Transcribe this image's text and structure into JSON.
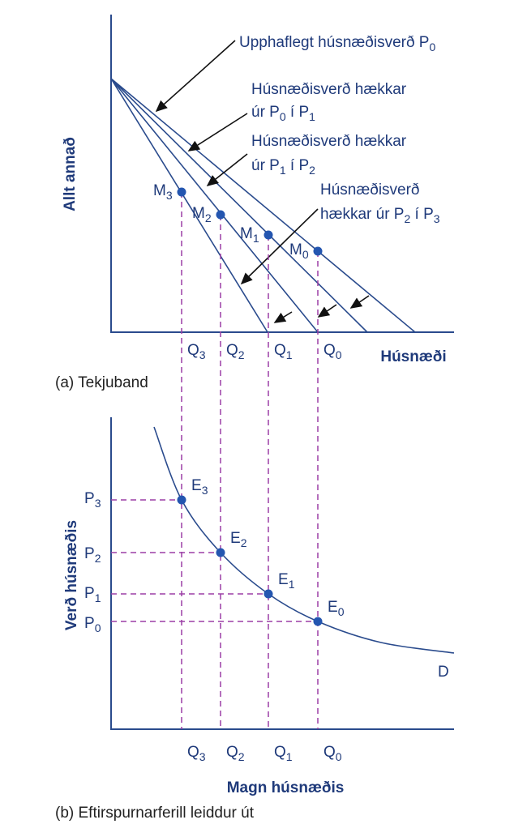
{
  "panel_a": {
    "y_axis_label": "Allt annað",
    "x_axis_label": "Húsnæði",
    "caption": "(a) Tekjuband",
    "annotations": [
      {
        "lines": [
          [
            "Upphaflegt húsnæðisverð P",
            "0"
          ]
        ]
      },
      {
        "lines": [
          [
            "Húsnæðisverð hækkar"
          ],
          [
            "úr P",
            "0",
            " í P",
            "1"
          ]
        ]
      },
      {
        "lines": [
          [
            "Húsnæðisverð hækkar"
          ],
          [
            "úr P",
            "1",
            " í P",
            "2"
          ]
        ]
      },
      {
        "lines": [
          [
            "Húsnæðisverð"
          ],
          [
            "hækkar úr P",
            "2",
            " í P",
            "3"
          ]
        ]
      }
    ],
    "points": [
      [
        "M",
        "3"
      ],
      [
        "M",
        "2"
      ],
      [
        "M",
        "1"
      ],
      [
        "M",
        "0"
      ]
    ],
    "quantities": [
      [
        "Q",
        "3"
      ],
      [
        "Q",
        "2"
      ],
      [
        "Q",
        "1"
      ],
      [
        "Q",
        "0"
      ]
    ]
  },
  "panel_b": {
    "y_axis_label": "Verð húsnæðis",
    "x_axis_label": "Magn húsnæðis",
    "caption": "(b) Eftirspurnarferill leiddur út",
    "curve_label": "D",
    "points": [
      [
        "E",
        "3"
      ],
      [
        "E",
        "2"
      ],
      [
        "E",
        "1"
      ],
      [
        "E",
        "0"
      ]
    ],
    "prices": [
      [
        "P",
        "3"
      ],
      [
        "P",
        "2"
      ],
      [
        "P",
        "1"
      ],
      [
        "P",
        "0"
      ]
    ],
    "quantities": [
      [
        "Q",
        "3"
      ],
      [
        "Q",
        "2"
      ],
      [
        "Q",
        "1"
      ],
      [
        "Q",
        "0"
      ]
    ]
  }
}
